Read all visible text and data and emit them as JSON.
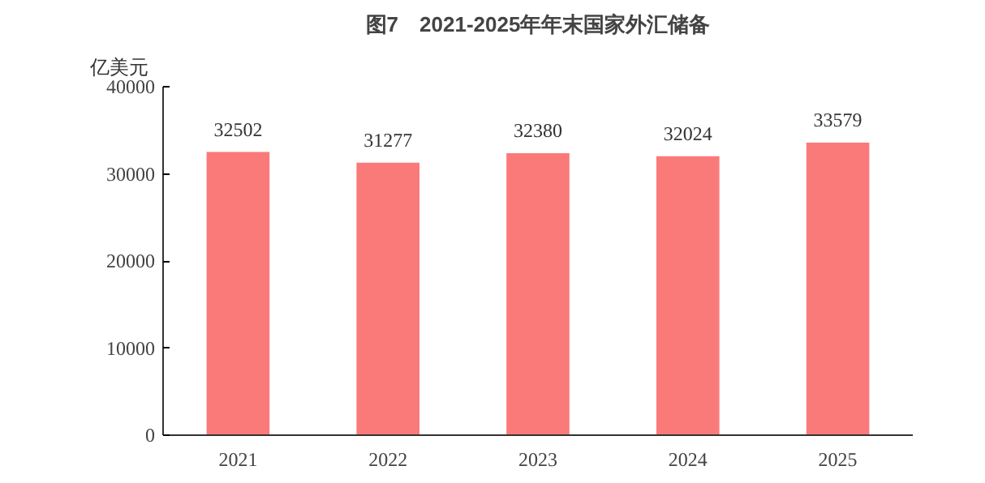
{
  "chart_data": {
    "type": "bar",
    "title": "图7　2021-2025年年末国家外汇储备",
    "ylabel": "亿美元",
    "categories": [
      "2021",
      "2022",
      "2023",
      "2024",
      "2025"
    ],
    "values": [
      32502,
      31277,
      32380,
      32024,
      33579
    ],
    "color": "#fa7a7a",
    "ylim": [
      0,
      40000
    ],
    "yticks": [
      0,
      10000,
      20000,
      30000,
      40000
    ],
    "data_labels": true
  }
}
